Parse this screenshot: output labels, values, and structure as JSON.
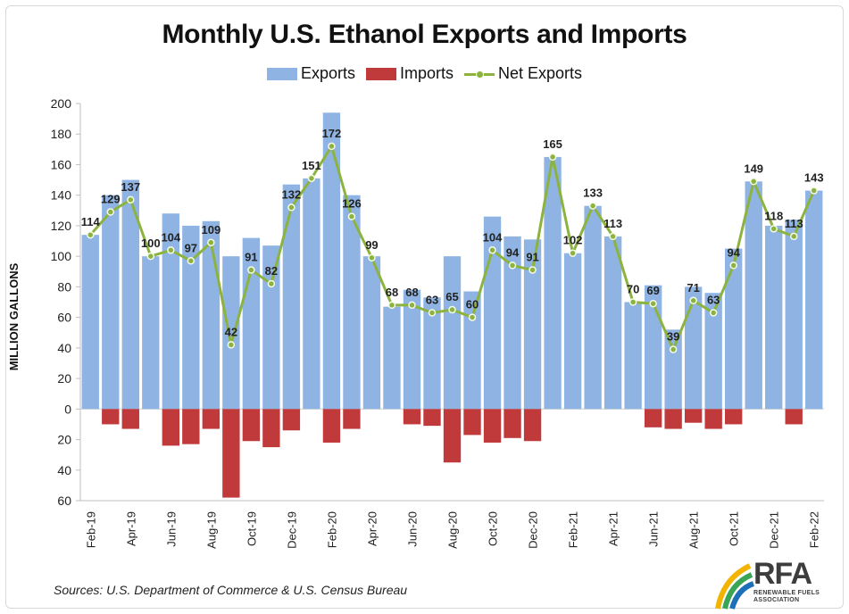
{
  "chart_data": {
    "type": "bar",
    "title": "Monthly U.S. Ethanol Exports and Imports",
    "ylabel": "MILLION GALLONS",
    "xlabel": "",
    "ylim": [
      -60,
      200
    ],
    "yticks": [
      {
        "value": 200,
        "label": "200"
      },
      {
        "value": 180,
        "label": "180"
      },
      {
        "value": 160,
        "label": "160"
      },
      {
        "value": 140,
        "label": "140"
      },
      {
        "value": 120,
        "label": "120"
      },
      {
        "value": 100,
        "label": "100"
      },
      {
        "value": 80,
        "label": "80"
      },
      {
        "value": 60,
        "label": "60"
      },
      {
        "value": 40,
        "label": "40"
      },
      {
        "value": 20,
        "label": "20"
      },
      {
        "value": 0,
        "label": "0"
      },
      {
        "value": -20,
        "label": "20"
      },
      {
        "value": -40,
        "label": "40"
      },
      {
        "value": -60,
        "label": "60"
      }
    ],
    "categories": [
      "Feb-19",
      "Mar-19",
      "Apr-19",
      "May-19",
      "Jun-19",
      "Jul-19",
      "Aug-19",
      "Sep-19",
      "Oct-19",
      "Nov-19",
      "Dec-19",
      "Jan-20",
      "Feb-20",
      "Mar-20",
      "Apr-20",
      "May-20",
      "Jun-20",
      "Jul-20",
      "Aug-20",
      "Sep-20",
      "Oct-20",
      "Nov-20",
      "Dec-20",
      "Jan-21",
      "Feb-21",
      "Mar-21",
      "Apr-21",
      "May-21",
      "Jun-21",
      "Jul-21",
      "Aug-21",
      "Sep-21",
      "Oct-21",
      "Nov-21",
      "Dec-21",
      "Jan-22",
      "Feb-22"
    ],
    "tick_labels": [
      "Feb-19",
      "Apr-19",
      "Jun-19",
      "Aug-19",
      "Oct-19",
      "Dec-19",
      "Feb-20",
      "Apr-20",
      "Jun-20",
      "Aug-20",
      "Oct-20",
      "Dec-20",
      "Feb-21",
      "Apr-21",
      "Jun-21",
      "Aug-21",
      "Oct-21",
      "Dec-21",
      "Feb-22"
    ],
    "grid": false,
    "legend": "top-center",
    "series": [
      {
        "name": "Exports",
        "type": "bar",
        "color": "#8fb4e3",
        "values": [
          114,
          140,
          150,
          100,
          128,
          120,
          123,
          100,
          112,
          107,
          147,
          151,
          194,
          140,
          100,
          67,
          78,
          73,
          100,
          77,
          126,
          113,
          111,
          165,
          102,
          133,
          113,
          70,
          81,
          52,
          80,
          76,
          105,
          149,
          120,
          124,
          143
        ]
      },
      {
        "name": "Imports",
        "type": "bar",
        "color": "#c0393b",
        "values": [
          0,
          -10,
          -13,
          0,
          -24,
          -23,
          -13,
          -58,
          -21,
          -25,
          -14,
          0,
          -22,
          -13,
          0,
          0,
          -10,
          -11,
          -35,
          -17,
          -22,
          -19,
          -21,
          0,
          0,
          0,
          0,
          0,
          -12,
          -13,
          -9,
          -13,
          -10,
          0,
          0,
          -10,
          0
        ]
      },
      {
        "name": "Net Exports",
        "type": "line",
        "color": "#8cb33f",
        "values": [
          114,
          129,
          137,
          100,
          104,
          97,
          109,
          42,
          91,
          82,
          132,
          151,
          172,
          126,
          99,
          68,
          68,
          63,
          65,
          60,
          104,
          94,
          91,
          165,
          102,
          133,
          113,
          70,
          69,
          39,
          71,
          63,
          94,
          149,
          118,
          113,
          143
        ]
      }
    ],
    "data_labels": [
      {
        "i": 0,
        "text": "114"
      },
      {
        "i": 1,
        "text": "129"
      },
      {
        "i": 2,
        "text": "137"
      },
      {
        "i": 3,
        "text": "100"
      },
      {
        "i": 4,
        "text": "104"
      },
      {
        "i": 5,
        "text": "97"
      },
      {
        "i": 6,
        "text": "109"
      },
      {
        "i": 7,
        "text": "42"
      },
      {
        "i": 8,
        "text": "91"
      },
      {
        "i": 9,
        "text": "82"
      },
      {
        "i": 10,
        "text": "132"
      },
      {
        "i": 11,
        "text": "151"
      },
      {
        "i": 12,
        "text": "172"
      },
      {
        "i": 13,
        "text": "126"
      },
      {
        "i": 14,
        "text": "99"
      },
      {
        "i": 15,
        "text": "68"
      },
      {
        "i": 16,
        "text": "68"
      },
      {
        "i": 17,
        "text": "63"
      },
      {
        "i": 18,
        "text": "65"
      },
      {
        "i": 19,
        "text": "60"
      },
      {
        "i": 20,
        "text": "104"
      },
      {
        "i": 21,
        "text": "94"
      },
      {
        "i": 22,
        "text": "91"
      },
      {
        "i": 23,
        "text": "165"
      },
      {
        "i": 24,
        "text": "102"
      },
      {
        "i": 25,
        "text": "133"
      },
      {
        "i": 26,
        "text": "113"
      },
      {
        "i": 27,
        "text": "70"
      },
      {
        "i": 28,
        "text": "69"
      },
      {
        "i": 29,
        "text": "39"
      },
      {
        "i": 30,
        "text": "71"
      },
      {
        "i": 31,
        "text": "63"
      },
      {
        "i": 32,
        "text": "94"
      },
      {
        "i": 33,
        "text": "149"
      },
      {
        "i": 34,
        "text": "118"
      },
      {
        "i": 35,
        "text": "113"
      },
      {
        "i": 36,
        "text": "143"
      }
    ]
  },
  "source_note": "Sources: U.S. Department of Commerce & U.S. Census Bureau",
  "logo": {
    "name": "RFA",
    "subtitle_line1": "RENEWABLE FUELS",
    "subtitle_line2": "ASSOCIATION",
    "colors": [
      "#f2b400",
      "#3aa655",
      "#1c6fb8"
    ]
  }
}
